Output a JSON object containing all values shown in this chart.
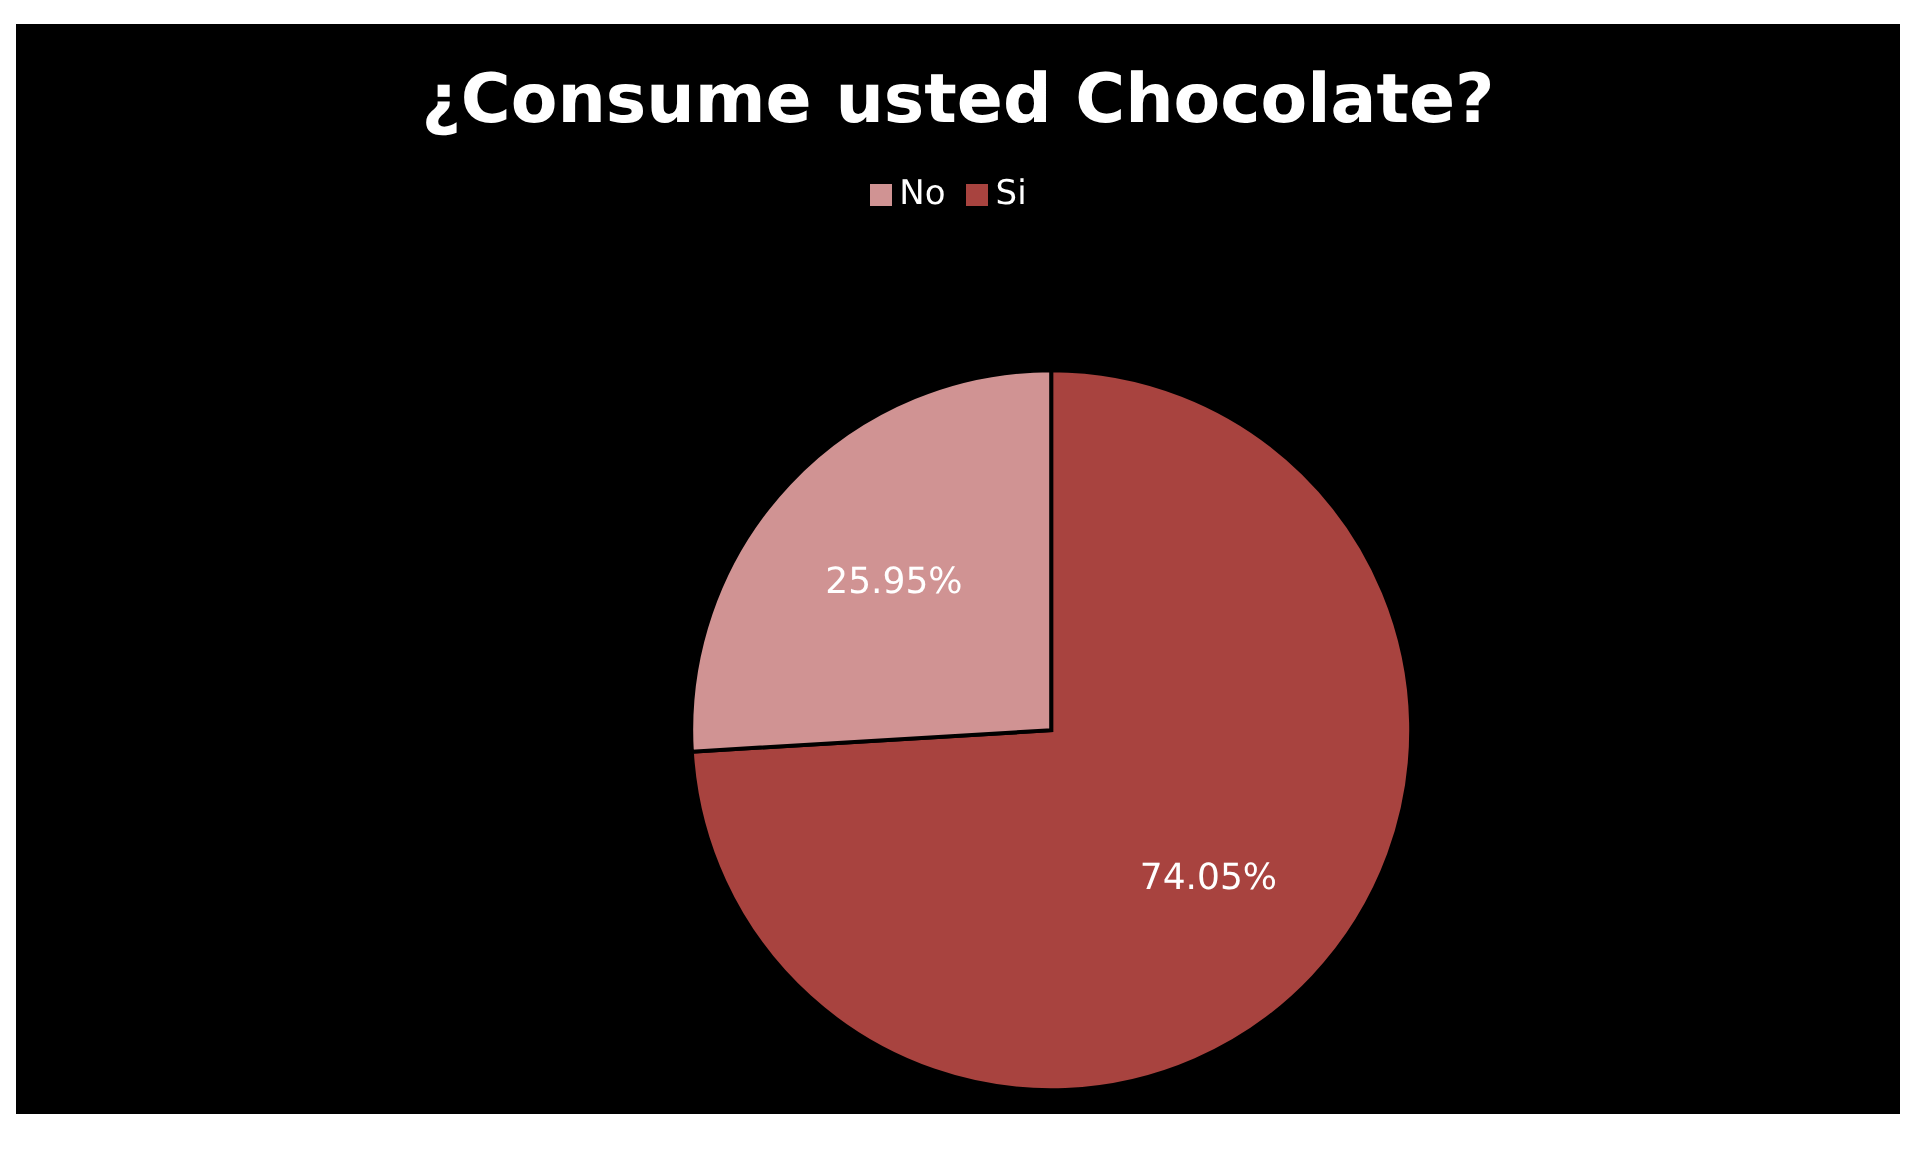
{
  "chart_data": {
    "type": "pie",
    "title": "¿Consume usted Chocolate?",
    "categories": [
      "Si",
      "No"
    ],
    "values": [
      74.05,
      25.95
    ],
    "colors": [
      "#a8433f",
      "#d09393"
    ],
    "value_labels": [
      "74.05%",
      "25.95%"
    ],
    "legend": "top"
  }
}
